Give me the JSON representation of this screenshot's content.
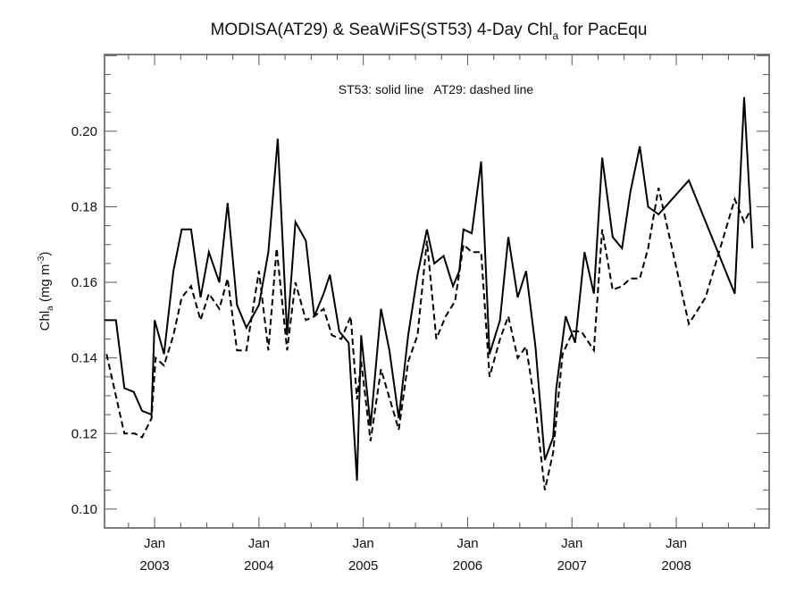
{
  "chart_data": {
    "type": "line",
    "title": "MODISA(AT29) & SeaWiFS(ST53) 4-Day Chl",
    "title_subscript": "a",
    "title_suffix": " for PacEqu",
    "ylabel": "Chl",
    "ylabel_subscript": "a",
    "ylabel_units": " (mg m",
    "ylabel_units_sup": "-3",
    "ylabel_close": ")",
    "legend_text": "ST53: solid line   AT29: dashed line",
    "legend_position": "top-center",
    "grid": false,
    "xlim": [
      2002.52,
      2008.89
    ],
    "ylim": [
      0.095,
      0.2203
    ],
    "yticks": [
      {
        "value": 0.1,
        "label": "0.10"
      },
      {
        "value": 0.12,
        "label": "0.12"
      },
      {
        "value": 0.14,
        "label": "0.14"
      },
      {
        "value": 0.16,
        "label": "0.16"
      },
      {
        "value": 0.18,
        "label": "0.18"
      },
      {
        "value": 0.2,
        "label": "0.20"
      }
    ],
    "xticks": [
      {
        "value": 2003,
        "label_top": "Jan",
        "label_bottom": "2003"
      },
      {
        "value": 2004,
        "label_top": "Jan",
        "label_bottom": "2004"
      },
      {
        "value": 2005,
        "label_top": "Jan",
        "label_bottom": "2005"
      },
      {
        "value": 2006,
        "label_top": "Jan",
        "label_bottom": "2006"
      },
      {
        "value": 2007,
        "label_top": "Jan",
        "label_bottom": "2007"
      },
      {
        "value": 2008,
        "label_top": "Jan",
        "label_bottom": "2008"
      }
    ],
    "series": [
      {
        "name": "ST53 (SeaWiFS)",
        "style": "solid",
        "x": [
          2002.52,
          2002.63,
          2002.71,
          2002.8,
          2002.88,
          2002.97,
          2003.0,
          2003.09,
          2003.18,
          2003.26,
          2003.35,
          2003.44,
          2003.52,
          2003.62,
          2003.7,
          2003.79,
          2003.88,
          2004.0,
          2004.09,
          2004.18,
          2004.27,
          2004.35,
          2004.45,
          2004.53,
          2004.62,
          2004.68,
          2004.77,
          2004.86,
          2004.94,
          2004.98,
          2005.07,
          2005.17,
          2005.25,
          2005.34,
          2005.43,
          2005.52,
          2005.61,
          2005.68,
          2005.77,
          2005.86,
          2005.92,
          2005.96,
          2006.04,
          2006.13,
          2006.21,
          2006.31,
          2006.39,
          2006.48,
          2006.56,
          2006.65,
          2006.74,
          2006.82,
          2006.85,
          2006.94,
          2007.03,
          2007.12,
          2007.21,
          2007.29,
          2007.39,
          2007.48,
          2007.56,
          2007.65,
          2007.73,
          2007.83,
          2008.12,
          2008.56,
          2008.65,
          2008.73
        ],
        "values": [
          0.15,
          0.15,
          0.132,
          0.131,
          0.126,
          0.125,
          0.15,
          0.141,
          0.163,
          0.174,
          0.174,
          0.156,
          0.168,
          0.16,
          0.181,
          0.154,
          0.148,
          0.154,
          0.168,
          0.198,
          0.146,
          0.176,
          0.171,
          0.151,
          0.157,
          0.162,
          0.147,
          0.144,
          0.1075,
          0.146,
          0.122,
          0.153,
          0.142,
          0.124,
          0.146,
          0.162,
          0.174,
          0.165,
          0.167,
          0.159,
          0.163,
          0.174,
          0.173,
          0.192,
          0.141,
          0.15,
          0.172,
          0.156,
          0.163,
          0.143,
          0.113,
          0.119,
          0.132,
          0.151,
          0.144,
          0.168,
          0.157,
          0.193,
          0.172,
          0.169,
          0.184,
          0.196,
          0.18,
          0.178,
          0.187,
          0.157,
          0.209,
          0.169
        ]
      },
      {
        "name": "AT29 (MODISA)",
        "style": "dashed",
        "x": [
          2002.54,
          2002.71,
          2002.81,
          2002.88,
          2002.97,
          2003.01,
          2003.09,
          2003.18,
          2003.26,
          2003.35,
          2003.44,
          2003.52,
          2003.62,
          2003.7,
          2003.79,
          2003.88,
          2004.0,
          2004.09,
          2004.17,
          2004.27,
          2004.35,
          2004.45,
          2004.53,
          2004.62,
          2004.7,
          2004.79,
          2004.88,
          2004.94,
          2004.98,
          2005.07,
          2005.17,
          2005.34,
          2005.43,
          2005.52,
          2005.61,
          2005.7,
          2005.79,
          2005.88,
          2005.96,
          2006.04,
          2006.13,
          2006.21,
          2006.31,
          2006.39,
          2006.48,
          2006.56,
          2006.65,
          2006.74,
          2006.82,
          2006.91,
          2007.01,
          2007.09,
          2007.21,
          2007.29,
          2007.39,
          2007.48,
          2007.56,
          2007.65,
          2007.73,
          2007.83,
          2008.12,
          2008.28,
          2008.56,
          2008.65,
          2008.71
        ],
        "values": [
          0.141,
          0.12,
          0.12,
          0.119,
          0.124,
          0.14,
          0.138,
          0.146,
          0.156,
          0.159,
          0.15,
          0.157,
          0.153,
          0.161,
          0.142,
          0.142,
          0.163,
          0.142,
          0.169,
          0.142,
          0.16,
          0.15,
          0.151,
          0.153,
          0.146,
          0.145,
          0.151,
          0.129,
          0.139,
          0.118,
          0.137,
          0.121,
          0.139,
          0.146,
          0.171,
          0.145,
          0.151,
          0.155,
          0.17,
          0.168,
          0.168,
          0.135,
          0.145,
          0.151,
          0.14,
          0.143,
          0.127,
          0.105,
          0.115,
          0.141,
          0.147,
          0.147,
          0.142,
          0.174,
          0.158,
          0.159,
          0.161,
          0.161,
          0.169,
          0.185,
          0.149,
          0.156,
          0.182,
          0.176,
          0.179
        ]
      }
    ]
  }
}
